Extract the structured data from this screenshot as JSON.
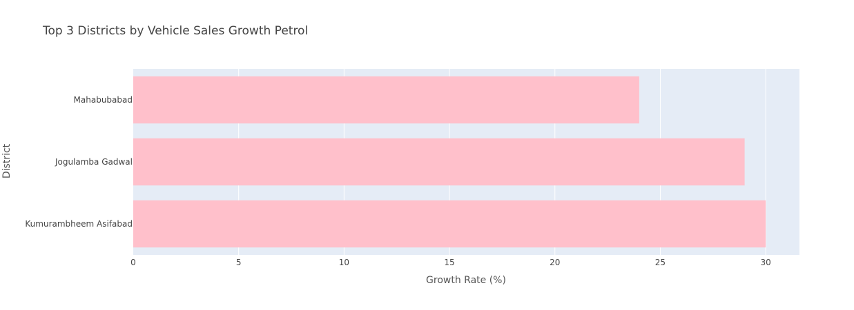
{
  "chart_data": {
    "type": "bar",
    "orientation": "horizontal",
    "title": "Top 3 Districts by Vehicle Sales Growth Petrol",
    "xlabel": "Growth Rate (%)",
    "ylabel": "District",
    "categories": [
      "Mahabubabad",
      "Jogulamba Gadwal",
      "Kumurambheem Asifabad"
    ],
    "values": [
      24,
      29,
      30
    ],
    "xlim": [
      0,
      31.6
    ],
    "xticks": [
      0,
      5,
      10,
      15,
      20,
      25,
      30
    ],
    "grid": true,
    "colors": {
      "bar": "#ffc0cb",
      "plot_background": "#e5ecf6",
      "grid": "#ffffff",
      "text": "#444444"
    }
  }
}
